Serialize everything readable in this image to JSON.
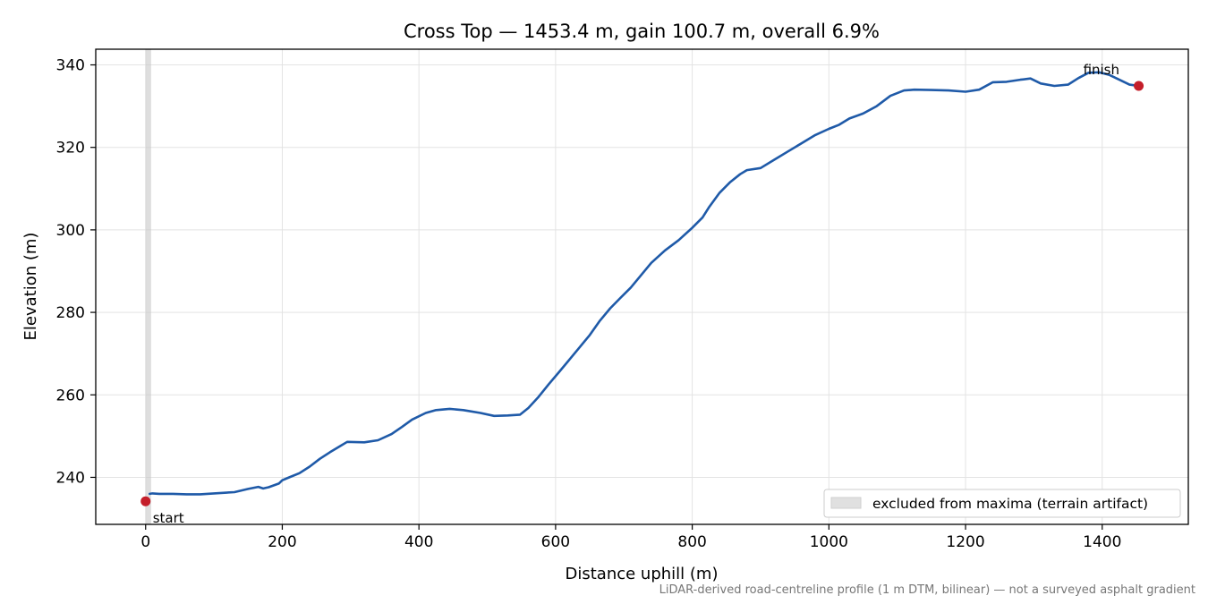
{
  "chart_data": {
    "type": "line",
    "title": "Cross Top — 1453.4 m, gain 100.7 m, overall 6.9%",
    "xlabel": "Distance uphill (m)",
    "ylabel": "Elevation (m)",
    "xlim": [
      -73,
      1526
    ],
    "ylim": [
      228.6,
      343.8
    ],
    "xticks": [
      0,
      200,
      400,
      600,
      800,
      1000,
      1200,
      1400
    ],
    "xtick_labels": [
      "0",
      "200",
      "400",
      "600",
      "800",
      "1000",
      "1200",
      "1400"
    ],
    "yticks": [
      240,
      260,
      280,
      300,
      320,
      340
    ],
    "ytick_labels": [
      "240",
      "260",
      "280",
      "300",
      "320",
      "340"
    ],
    "grid": true,
    "legend_position": "lower-right",
    "excluded_band": {
      "x_start": 0,
      "x_end": 8,
      "label": "excluded from maxima (terrain artifact)",
      "color": "#c8c8c8"
    },
    "series": [
      {
        "color": "#1f5aa8",
        "points": [
          [
            6,
            236.0
          ],
          [
            10,
            236.1
          ],
          [
            20,
            236.0
          ],
          [
            40,
            236.0
          ],
          [
            60,
            235.9
          ],
          [
            80,
            235.9
          ],
          [
            100,
            236.1
          ],
          [
            130,
            236.4
          ],
          [
            150,
            237.2
          ],
          [
            165,
            237.7
          ],
          [
            172,
            237.3
          ],
          [
            180,
            237.6
          ],
          [
            195,
            238.5
          ],
          [
            200,
            239.3
          ],
          [
            210,
            240.0
          ],
          [
            225,
            241.0
          ],
          [
            240,
            242.6
          ],
          [
            255,
            244.5
          ],
          [
            270,
            246.1
          ],
          [
            285,
            247.6
          ],
          [
            295,
            248.6
          ],
          [
            320,
            248.5
          ],
          [
            340,
            249.0
          ],
          [
            360,
            250.5
          ],
          [
            375,
            252.2
          ],
          [
            390,
            254.0
          ],
          [
            410,
            255.6
          ],
          [
            425,
            256.3
          ],
          [
            445,
            256.6
          ],
          [
            465,
            256.3
          ],
          [
            490,
            255.6
          ],
          [
            510,
            254.9
          ],
          [
            530,
            255.0
          ],
          [
            548,
            255.2
          ],
          [
            560,
            256.8
          ],
          [
            575,
            259.5
          ],
          [
            590,
            262.6
          ],
          [
            605,
            265.5
          ],
          [
            620,
            268.5
          ],
          [
            635,
            271.5
          ],
          [
            650,
            274.5
          ],
          [
            665,
            278.0
          ],
          [
            680,
            281.0
          ],
          [
            695,
            283.5
          ],
          [
            710,
            286.0
          ],
          [
            725,
            289.0
          ],
          [
            740,
            292.0
          ],
          [
            760,
            295.0
          ],
          [
            780,
            297.5
          ],
          [
            800,
            300.5
          ],
          [
            815,
            303.0
          ],
          [
            825,
            305.6
          ],
          [
            840,
            309.0
          ],
          [
            855,
            311.5
          ],
          [
            870,
            313.5
          ],
          [
            880,
            314.5
          ],
          [
            900,
            315.0
          ],
          [
            920,
            317.0
          ],
          [
            940,
            319.0
          ],
          [
            960,
            321.0
          ],
          [
            980,
            323.0
          ],
          [
            1000,
            324.5
          ],
          [
            1015,
            325.5
          ],
          [
            1030,
            327.0
          ],
          [
            1050,
            328.2
          ],
          [
            1070,
            330.0
          ],
          [
            1090,
            332.5
          ],
          [
            1110,
            333.8
          ],
          [
            1125,
            334.0
          ],
          [
            1150,
            333.9
          ],
          [
            1175,
            333.8
          ],
          [
            1200,
            333.5
          ],
          [
            1220,
            334.0
          ],
          [
            1240,
            335.8
          ],
          [
            1260,
            335.9
          ],
          [
            1280,
            336.4
          ],
          [
            1295,
            336.7
          ],
          [
            1310,
            335.5
          ],
          [
            1330,
            334.9
          ],
          [
            1350,
            335.2
          ],
          [
            1365,
            336.8
          ],
          [
            1380,
            338.1
          ],
          [
            1395,
            338.2
          ],
          [
            1410,
            337.6
          ],
          [
            1425,
            336.4
          ],
          [
            1440,
            335.2
          ],
          [
            1453.4,
            334.9
          ]
        ]
      }
    ],
    "markers": [
      {
        "x": 0,
        "y": 234.2,
        "label": "start",
        "color": "#c41e2a"
      },
      {
        "x": 1453.4,
        "y": 334.9,
        "label": "finish",
        "color": "#c41e2a"
      }
    ]
  },
  "footnote": "LiDAR-derived road-centreline profile (1 m DTM, bilinear) — not a surveyed asphalt gradient"
}
